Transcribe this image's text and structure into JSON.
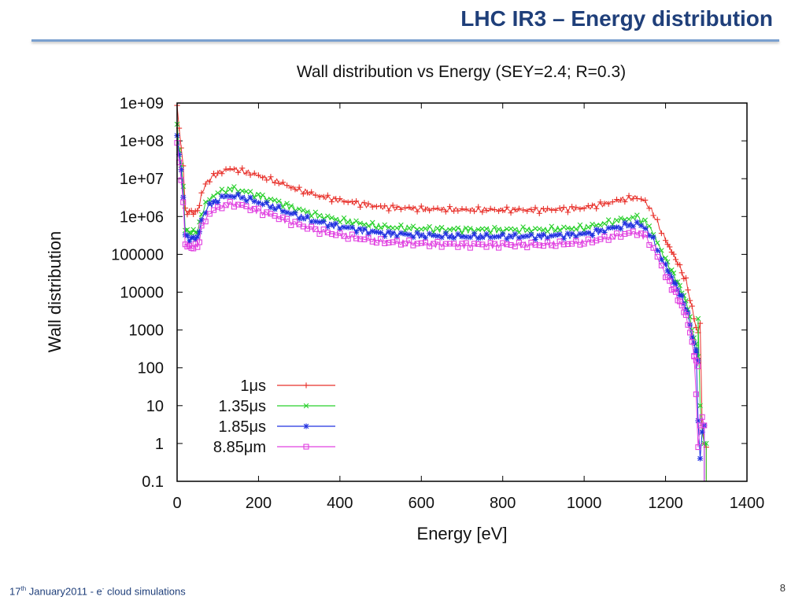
{
  "slide": {
    "title": "LHC IR3 – Energy distribution",
    "footer_date": "17",
    "footer_date_sup": "th",
    "footer_date_rest": " January2011  -  e",
    "footer_topic_sup": "-",
    "footer_topic": " cloud simulations",
    "page_number": "8"
  },
  "colors": {
    "title": "#1f3f7a",
    "rule": "#7aa0cf"
  },
  "chart_data": {
    "type": "scatter",
    "title": "Wall distribution vs Energy (SEY=2.4; R=0.3)",
    "xlabel": "Energy [eV]",
    "ylabel": "Wall distribution",
    "xlim": [
      0,
      1400
    ],
    "ylim": [
      0.1,
      1000000000
    ],
    "yscale": "log",
    "xticks": [
      "0",
      "200",
      "400",
      "600",
      "800",
      "1000",
      "1200",
      "1400"
    ],
    "yticks": [
      "0.1",
      "1",
      "10",
      "100",
      "1000",
      "10000",
      "100000",
      "1e+06",
      "1e+07",
      "1e+08",
      "1e+09"
    ],
    "legend_position": "bottom-left",
    "series": [
      {
        "name": "1μs",
        "color": "#e8302a",
        "marker": "plus",
        "scale": 1.0
      },
      {
        "name": "1.35μs",
        "color": "#27d02a",
        "marker": "cross",
        "scale": 0.3
      },
      {
        "name": "1.85μs",
        "color": "#2030e0",
        "marker": "star",
        "scale": 0.2
      },
      {
        "name": "8.85μm",
        "color": "#e040e0",
        "marker": "square",
        "scale": 0.12
      }
    ],
    "profile": {
      "x": [
        0,
        5,
        10,
        15,
        20,
        30,
        40,
        50,
        55,
        60,
        70,
        80,
        100,
        120,
        140,
        160,
        200,
        250,
        300,
        350,
        400,
        500,
        600,
        700,
        800,
        900,
        1000,
        1050,
        1100,
        1130,
        1150,
        1170,
        1190,
        1210,
        1230,
        1250,
        1260,
        1270,
        1280
      ],
      "y": [
        800000000,
        200000000,
        80000000,
        20000000,
        1500000,
        1300000,
        1300000,
        1400000,
        2000000,
        4000000,
        7000000,
        10000000,
        14000000,
        17000000,
        18000000,
        16000000,
        12000000,
        8000000,
        5000000,
        3500000,
        2700000,
        1800000,
        1600000,
        1500000,
        1500000,
        1500000,
        1700000,
        2200000,
        2900000,
        3200000,
        2500000,
        1200000,
        400000,
        150000,
        60000,
        20000,
        7000,
        2000,
        800
      ]
    },
    "tails": [
      {
        "x": [
          1285,
          1290,
          1295,
          1300
        ],
        "y": [
          1500,
          3,
          1,
          0.8
        ]
      },
      {
        "x": [
          1280,
          1285,
          1290,
          1295,
          1300
        ],
        "y": [
          2000,
          10,
          2,
          1,
          1
        ]
      },
      {
        "x": [
          1275,
          1280,
          1285,
          1290,
          1295
        ],
        "y": [
          300,
          4,
          0.4,
          2,
          3
        ]
      },
      {
        "x": [
          1270,
          1275,
          1280,
          1285,
          1290,
          1295
        ],
        "y": [
          200,
          20,
          0.8,
          3,
          5,
          3
        ]
      }
    ]
  }
}
